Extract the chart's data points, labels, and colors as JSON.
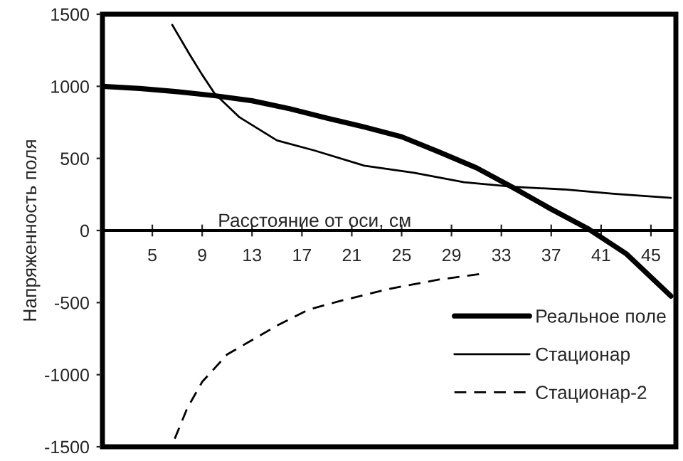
{
  "chart_data": {
    "type": "line",
    "xlabel": "Расстояние от оси, см",
    "ylabel": "Напряженность поля",
    "xlim": [
      1,
      47
    ],
    "xticks": [
      5,
      9,
      13,
      17,
      21,
      25,
      29,
      33,
      37,
      41,
      45
    ],
    "ylim": [
      -1500,
      1500
    ],
    "yticks": [
      -1500,
      -1000,
      -500,
      0,
      500,
      1000,
      1500
    ],
    "grid": false,
    "legend": "bottom right",
    "marker": "none",
    "series": [
      {
        "name": "Реальное поле",
        "color": "#000000",
        "line_style": "solid",
        "x": [
          1,
          4,
          7,
          10,
          13,
          16,
          19,
          22,
          25,
          28,
          31,
          34,
          37,
          40,
          43,
          46.6
        ],
        "values": [
          1000,
          985,
          963,
          935,
          900,
          845,
          780,
          718,
          650,
          545,
          435,
          295,
          148,
          10,
          -160,
          -455
        ]
      },
      {
        "name": "Стационар",
        "color": "#000000",
        "line_style": "solid",
        "x": [
          6.6,
          8,
          9,
          10,
          12,
          15,
          18,
          22,
          26,
          30,
          34,
          38,
          42,
          46.6
        ],
        "values": [
          1426,
          1220,
          1080,
          950,
          785,
          625,
          555,
          450,
          400,
          335,
          303,
          285,
          255,
          226
        ]
      },
      {
        "name": "Стационар-2",
        "color": "#000000",
        "line_style": "dashed",
        "x": [
          6.8,
          7.8,
          9,
          11,
          13,
          15,
          17.5,
          20,
          24,
          28,
          31.5
        ],
        "values": [
          -1444,
          -1233,
          -1050,
          -860,
          -760,
          -660,
          -550,
          -490,
          -405,
          -340,
          -300
        ]
      }
    ]
  }
}
